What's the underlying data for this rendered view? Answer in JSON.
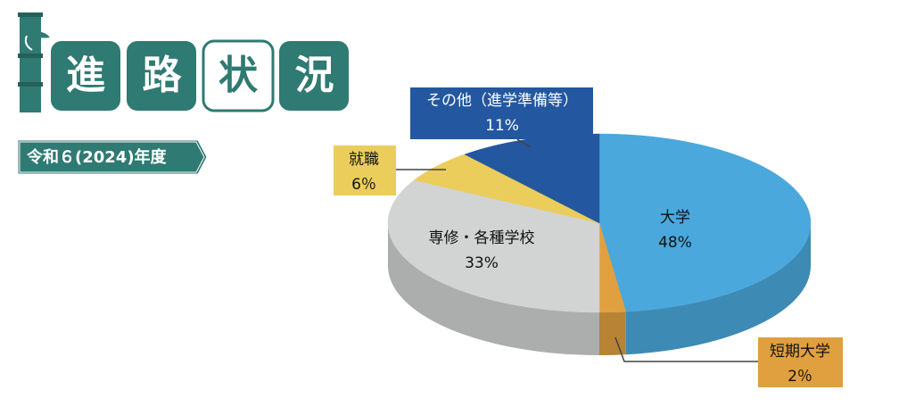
{
  "chart_data": {
    "type": "pie3d",
    "title": "進路状況",
    "subtitle": "令和６(2024)年度",
    "categories": [
      "大学",
      "短期大学",
      "専修・各種学校",
      "就職",
      "その他（進学準備等）"
    ],
    "values": [
      48,
      2,
      33,
      6,
      11
    ],
    "value_labels": [
      "48%",
      "2％",
      "33%",
      "6％",
      "11%"
    ],
    "colors": [
      "#4aa8dc",
      "#e0a040",
      "#d2d3d3",
      "#ebcd5c",
      "#2358a0"
    ]
  }
}
